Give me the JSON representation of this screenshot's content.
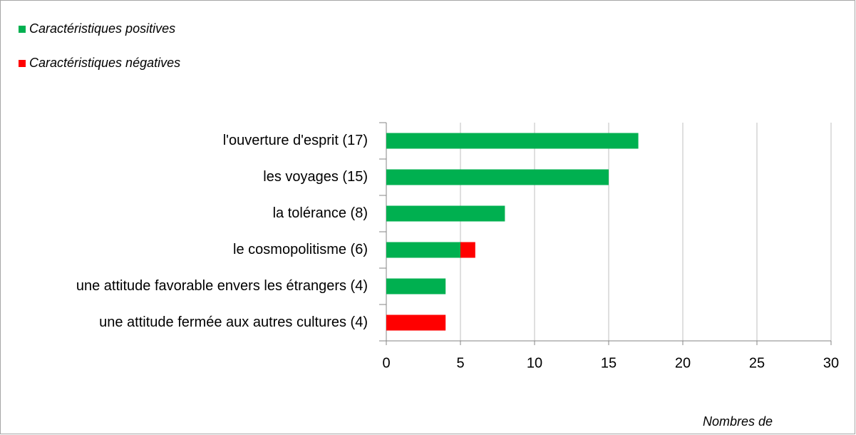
{
  "chart_data": {
    "type": "bar",
    "orientation": "horizontal",
    "stacked": true,
    "categories": [
      "l'ouverture d'esprit (17)",
      "les voyages (15)",
      "la tolérance (8)",
      "le cosmopolitisme (6)",
      "une attitude favorable envers les étrangers (4)",
      "une attitude fermée aux autres cultures (4)"
    ],
    "series": [
      {
        "name": "Caractéristiques positives",
        "color": "#00b050",
        "values": [
          17,
          15,
          8,
          5,
          4,
          0
        ]
      },
      {
        "name": "Caractéristiques négatives",
        "color": "#ff0000",
        "values": [
          0,
          0,
          0,
          1,
          0,
          4
        ]
      }
    ],
    "xlim": [
      0,
      30
    ],
    "xticks": [
      0,
      5,
      10,
      15,
      20,
      25,
      30
    ],
    "grid": true,
    "x_label": "Nombres de"
  }
}
